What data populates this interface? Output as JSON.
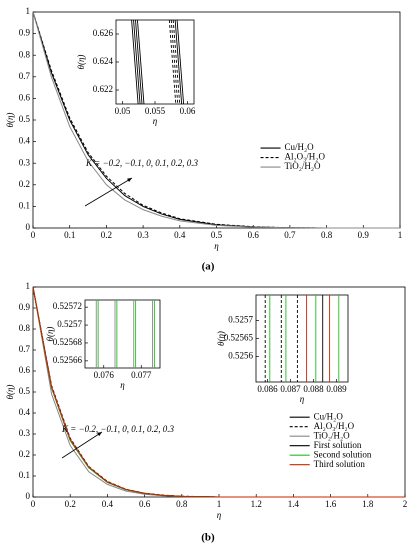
{
  "chart_data": [
    {
      "type": "line",
      "caption": "(a)",
      "xlabel": "η",
      "ylabel": "θ(η)",
      "xlim": [
        0,
        1
      ],
      "ylim": [
        0,
        1
      ],
      "xticks": [
        0,
        0.1,
        0.2,
        0.3,
        0.4,
        0.5,
        0.6,
        0.7,
        0.8,
        0.9,
        1
      ],
      "yticks": [
        0,
        0.1,
        0.2,
        0.3,
        0.4,
        0.5,
        0.6,
        0.7,
        0.8,
        0.9,
        1
      ],
      "legend": "center right",
      "annotation": "K = −0.2, −0.1, 0, 0.1, 0.2, 0.3",
      "x": [
        0,
        0.05,
        0.1,
        0.15,
        0.2,
        0.25,
        0.3,
        0.35,
        0.4,
        0.5,
        0.6,
        0.7,
        0.8,
        0.9,
        1
      ],
      "series": [
        {
          "name": "Cu/H₂O",
          "color": "#000000",
          "linestyle": "solid",
          "values": [
            1,
            0.72,
            0.5,
            0.34,
            0.23,
            0.15,
            0.1,
            0.065,
            0.04,
            0.015,
            0.005,
            0.001,
            0,
            0,
            0
          ]
        },
        {
          "name": "Al₂O₃/H₂O",
          "color": "#000000",
          "linestyle": "dashed",
          "values": [
            1,
            0.73,
            0.51,
            0.35,
            0.24,
            0.16,
            0.105,
            0.07,
            0.043,
            0.017,
            0.006,
            0.001,
            0,
            0,
            0
          ]
        },
        {
          "name": "TiO₂/H₂O",
          "color": "#888888",
          "linestyle": "solid",
          "values": [
            1,
            0.7,
            0.47,
            0.31,
            0.2,
            0.13,
            0.085,
            0.055,
            0.033,
            0.012,
            0.004,
            0.001,
            0,
            0,
            0
          ]
        }
      ],
      "insets": [
        {
          "type": "line",
          "xlabel": "η",
          "ylabel": "θ(η)",
          "xlim": [
            0.049,
            0.061
          ],
          "ylim": [
            0.621,
            0.627
          ],
          "xticks": [
            0.05,
            0.055,
            0.06
          ],
          "yticks": [
            0.622,
            0.624,
            0.626
          ],
          "lines": [
            {
              "color": "#000000",
              "linestyle": "solid",
              "x": [
                0.0514,
                0.0524
              ],
              "y": [
                0.627,
                0.621
              ]
            },
            {
              "color": "#000000",
              "linestyle": "solid",
              "x": [
                0.0517,
                0.0527
              ],
              "y": [
                0.627,
                0.621
              ]
            },
            {
              "color": "#000000",
              "linestyle": "solid",
              "x": [
                0.052,
                0.053
              ],
              "y": [
                0.627,
                0.621
              ]
            },
            {
              "color": "#000000",
              "linestyle": "solid",
              "x": [
                0.0523,
                0.0533
              ],
              "y": [
                0.627,
                0.621
              ]
            },
            {
              "color": "#000000",
              "linestyle": "dashed",
              "x": [
                0.0572,
                0.0582
              ],
              "y": [
                0.627,
                0.621
              ]
            },
            {
              "color": "#000000",
              "linestyle": "dashed",
              "x": [
                0.0575,
                0.0585
              ],
              "y": [
                0.627,
                0.621
              ]
            },
            {
              "color": "#000000",
              "linestyle": "dashed",
              "x": [
                0.0578,
                0.0588
              ],
              "y": [
                0.627,
                0.621
              ]
            },
            {
              "color": "#000000",
              "linestyle": "solid",
              "x": [
                0.0581,
                0.0591
              ],
              "y": [
                0.627,
                0.621
              ]
            },
            {
              "color": "#000000",
              "linestyle": "solid",
              "x": [
                0.0584,
                0.0594
              ],
              "y": [
                0.627,
                0.621
              ]
            }
          ]
        }
      ]
    },
    {
      "type": "line",
      "caption": "(b)",
      "xlabel": "η",
      "ylabel": "θ(η)",
      "xlim": [
        0,
        2
      ],
      "ylim": [
        0,
        1
      ],
      "xticks": [
        0,
        0.2,
        0.4,
        0.6,
        0.8,
        1,
        1.2,
        1.4,
        1.6,
        1.8,
        2
      ],
      "yticks": [
        0,
        0.1,
        0.2,
        0.3,
        0.4,
        0.5,
        0.6,
        0.7,
        0.8,
        0.9,
        1
      ],
      "legend": "lower right",
      "annotation": "K = −0.2, −0.1, 0, 0.1, 0.2, 0.3",
      "x": [
        0,
        0.1,
        0.2,
        0.3,
        0.4,
        0.5,
        0.6,
        0.7,
        0.8,
        1,
        1.5,
        2
      ],
      "series": [
        {
          "name": "Cu/H₂O",
          "color": "#000000",
          "linestyle": "solid",
          "values": [
            1,
            0.52,
            0.27,
            0.14,
            0.07,
            0.035,
            0.017,
            0.008,
            0.003,
            0,
            0,
            0
          ]
        },
        {
          "name": "Al₂O₃/H₂O",
          "color": "#000000",
          "linestyle": "dashed",
          "values": [
            1,
            0.53,
            0.28,
            0.145,
            0.074,
            0.037,
            0.018,
            0.009,
            0.004,
            0,
            0,
            0
          ]
        },
        {
          "name": "TiO₂/H₂O",
          "color": "#888888",
          "linestyle": "solid",
          "values": [
            1,
            0.49,
            0.245,
            0.12,
            0.06,
            0.028,
            0.013,
            0.006,
            0.002,
            0,
            0,
            0
          ]
        },
        {
          "name": "First solution",
          "color": "#000000",
          "linestyle": "solid",
          "values": [
            1,
            0.52,
            0.27,
            0.14,
            0.07,
            0.035,
            0.017,
            0.008,
            0.003,
            0,
            0,
            0
          ]
        },
        {
          "name": "Second solution",
          "color": "#22bb22",
          "linestyle": "solid",
          "values": [
            1,
            0.52,
            0.27,
            0.14,
            0.07,
            0.035,
            0.017,
            0.008,
            0.003,
            0,
            0,
            0
          ]
        },
        {
          "name": "Third solution",
          "color": "#cc2200",
          "linestyle": "solid",
          "values": [
            1,
            0.525,
            0.275,
            0.143,
            0.072,
            0.036,
            0.018,
            0.008,
            0.003,
            0,
            0,
            0
          ]
        }
      ],
      "insets": [
        {
          "type": "line",
          "xlabel": "η",
          "ylabel": "θ(η)",
          "xlim": [
            0.0755,
            0.0775
          ],
          "ylim": [
            0.525652,
            0.525728
          ],
          "xticks": [
            0.076,
            0.077
          ],
          "yticks": [
            0.52566,
            0.52568,
            0.5257,
            0.52572
          ],
          "lines": [
            {
              "color": "#888888",
              "linestyle": "solid",
              "x": [
                0.0758,
                0.0758
              ],
              "y": [
                0.525728,
                0.525652
              ]
            },
            {
              "color": "#22bb22",
              "linestyle": "solid",
              "x": [
                0.07585,
                0.07585
              ],
              "y": [
                0.525728,
                0.525652
              ]
            },
            {
              "color": "#888888",
              "linestyle": "solid",
              "x": [
                0.0763,
                0.0763
              ],
              "y": [
                0.525728,
                0.525652
              ]
            },
            {
              "color": "#22bb22",
              "linestyle": "solid",
              "x": [
                0.07635,
                0.07635
              ],
              "y": [
                0.525728,
                0.525652
              ]
            },
            {
              "color": "#888888",
              "linestyle": "solid",
              "x": [
                0.0768,
                0.0768
              ],
              "y": [
                0.525728,
                0.525652
              ]
            },
            {
              "color": "#22bb22",
              "linestyle": "solid",
              "x": [
                0.07685,
                0.07685
              ],
              "y": [
                0.525728,
                0.525652
              ]
            },
            {
              "color": "#888888",
              "linestyle": "solid",
              "x": [
                0.0773,
                0.0773
              ],
              "y": [
                0.525728,
                0.525652
              ]
            },
            {
              "color": "#22bb22",
              "linestyle": "solid",
              "x": [
                0.07735,
                0.07735
              ],
              "y": [
                0.525728,
                0.525652
              ]
            }
          ]
        },
        {
          "type": "line",
          "xlabel": "η",
          "ylabel": "θ(η)",
          "xlim": [
            0.0855,
            0.0895
          ],
          "ylim": [
            0.52553,
            0.52577
          ],
          "xticks": [
            0.086,
            0.087,
            0.088,
            0.089
          ],
          "yticks": [
            0.5256,
            0.52565,
            0.5257
          ],
          "lines": [
            {
              "color": "#000000",
              "linestyle": "dashed",
              "x": [
                0.0859,
                0.0859
              ],
              "y": [
                0.52577,
                0.52553
              ]
            },
            {
              "color": "#22bb22",
              "linestyle": "solid",
              "x": [
                0.0861,
                0.0861
              ],
              "y": [
                0.52577,
                0.52553
              ]
            },
            {
              "color": "#000000",
              "linestyle": "dashed",
              "x": [
                0.0866,
                0.0866
              ],
              "y": [
                0.52577,
                0.52553
              ]
            },
            {
              "color": "#22bb22",
              "linestyle": "solid",
              "x": [
                0.0868,
                0.0868
              ],
              "y": [
                0.52577,
                0.52553
              ]
            },
            {
              "color": "#000000",
              "linestyle": "dashed",
              "x": [
                0.0873,
                0.0873
              ],
              "y": [
                0.52577,
                0.52553
              ]
            },
            {
              "color": "#cc2200",
              "linestyle": "solid",
              "x": [
                0.0877,
                0.0877
              ],
              "y": [
                0.52577,
                0.52553
              ]
            },
            {
              "color": "#22bb22",
              "linestyle": "solid",
              "x": [
                0.0881,
                0.0881
              ],
              "y": [
                0.52577,
                0.52553
              ]
            },
            {
              "color": "#000000",
              "linestyle": "solid",
              "x": [
                0.0884,
                0.0884
              ],
              "y": [
                0.52577,
                0.52553
              ]
            },
            {
              "color": "#cc2200",
              "linestyle": "solid",
              "x": [
                0.0887,
                0.0887
              ],
              "y": [
                0.52577,
                0.52553
              ]
            },
            {
              "color": "#22bb22",
              "linestyle": "solid",
              "x": [
                0.0891,
                0.0891
              ],
              "y": [
                0.52577,
                0.52553
              ]
            }
          ]
        }
      ]
    }
  ]
}
